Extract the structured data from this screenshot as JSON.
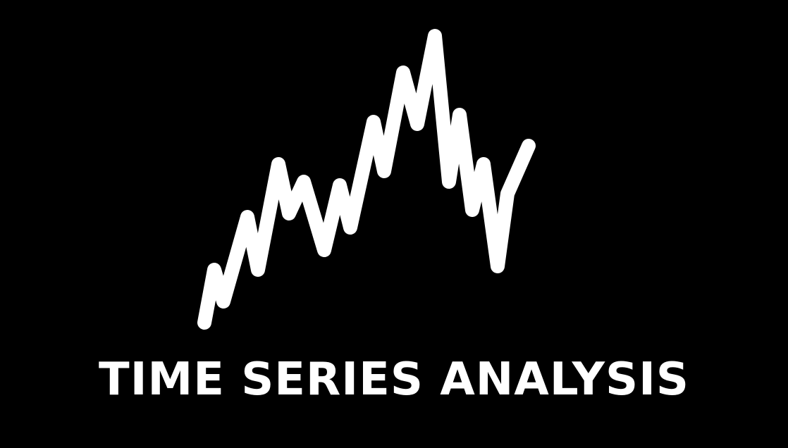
{
  "logo": {
    "text": "TIME SERIES ANALYSIS",
    "foreground_color": "#ffffff",
    "background_color": "#000000"
  }
}
